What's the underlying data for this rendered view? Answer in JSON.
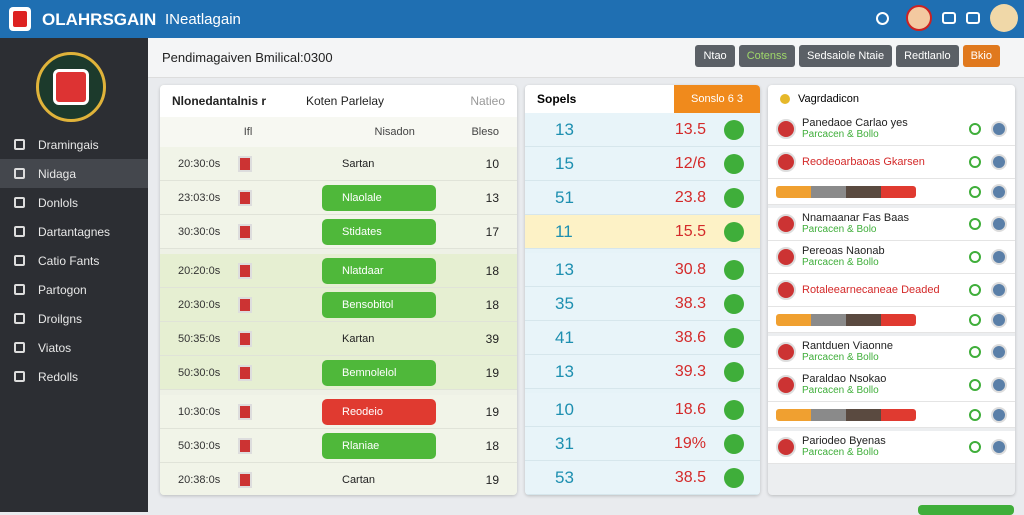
{
  "topbar": {
    "brand": "OLAHRSGAIN",
    "tab": "INeatlagain"
  },
  "sidebar": {
    "items": [
      "Dramingais",
      "Nidaga",
      "Donlols",
      "Dartantagnes",
      "Catio Fants",
      "Partogon",
      "Droilgns",
      "Viatos",
      "Redolls"
    ],
    "active": 1
  },
  "toolbar": {
    "title": "Pendimagaiven Bmilical:0300",
    "buttons": [
      "Ntao",
      "Cotenss",
      "Sedsaiole Ntaie",
      "Redtlanlo",
      "Bkio"
    ]
  },
  "left": {
    "header": [
      "Nlonedantalnis r",
      "Koten Parlelay",
      "Natieo"
    ],
    "subheader": [
      "Ifl",
      "Nisadon",
      "Bleso"
    ],
    "groups": [
      [
        {
          "time": "20:30:0s",
          "team": "Sartan",
          "num": "10",
          "style": "plain"
        },
        {
          "time": "23:03:0s",
          "team": "Nlaolale",
          "num": "13",
          "style": "green"
        },
        {
          "time": "30:30:0s",
          "team": "Stidates",
          "num": "17",
          "style": "green"
        }
      ],
      [
        {
          "time": "20:20:0s",
          "team": "Nlatdaar",
          "num": "18",
          "style": "green"
        },
        {
          "time": "20:30:0s",
          "team": "Bensobitol",
          "num": "18",
          "style": "green"
        },
        {
          "time": "50:35:0s",
          "team": "Kartan",
          "num": "39",
          "style": "plain"
        },
        {
          "time": "50:30:0s",
          "team": "Bemnolelol",
          "num": "19",
          "style": "green"
        }
      ],
      [
        {
          "time": "10:30:0s",
          "team": "Reodeio",
          "num": "19",
          "style": "red"
        },
        {
          "time": "50:30:0s",
          "team": "Rlaniae",
          "num": "18",
          "style": "green"
        },
        {
          "time": "20:38:0s",
          "team": "Cartan",
          "num": "19",
          "style": "plain"
        }
      ]
    ]
  },
  "middle": {
    "header": [
      "Sopels",
      "Sonslo 6 3"
    ],
    "groups": [
      [
        {
          "a": "13",
          "b": "13.5"
        },
        {
          "a": "15",
          "b": "12/6"
        },
        {
          "a": "51",
          "b": "23.8"
        },
        {
          "a": "11",
          "b": "15.5",
          "hl": true
        }
      ],
      [
        {
          "a": "13",
          "b": "30.8"
        },
        {
          "a": "35",
          "b": "38.3"
        },
        {
          "a": "41",
          "b": "38.6"
        },
        {
          "a": "13",
          "b": "39.3"
        }
      ],
      [
        {
          "a": "10",
          "b": "18.6"
        },
        {
          "a": "31",
          "b": "19%"
        },
        {
          "a": "53",
          "b": "38.5"
        }
      ]
    ]
  },
  "right": {
    "header": "Vagrdadicon",
    "cards": [
      [
        {
          "title": "Panedaoe Carlao yes",
          "sub": "Parcacen & Bollo"
        },
        {
          "title": "Reodeoarbaoas Gkarsen",
          "red": true
        },
        {
          "bar": true
        }
      ],
      [
        {
          "title": "Nnamaanar Fas Baas",
          "sub": "Parcacen & Bolo"
        },
        {
          "title": "Pereoas Naonab",
          "sub": "Parcacen & Bollo"
        },
        {
          "title": "Rotaleearnecaneae Deaded",
          "red": true
        },
        {
          "bar": true
        }
      ],
      [
        {
          "title": "Rantduen Viaonne",
          "sub": "Parcacen & Bollo"
        },
        {
          "title": "Paraldao Nsokao",
          "sub": "Parcacen & Bollo"
        },
        {
          "bar": true
        }
      ],
      [
        {
          "title": "Pariodeo Byenas",
          "sub": "Parcacen & Bollo"
        }
      ]
    ]
  }
}
